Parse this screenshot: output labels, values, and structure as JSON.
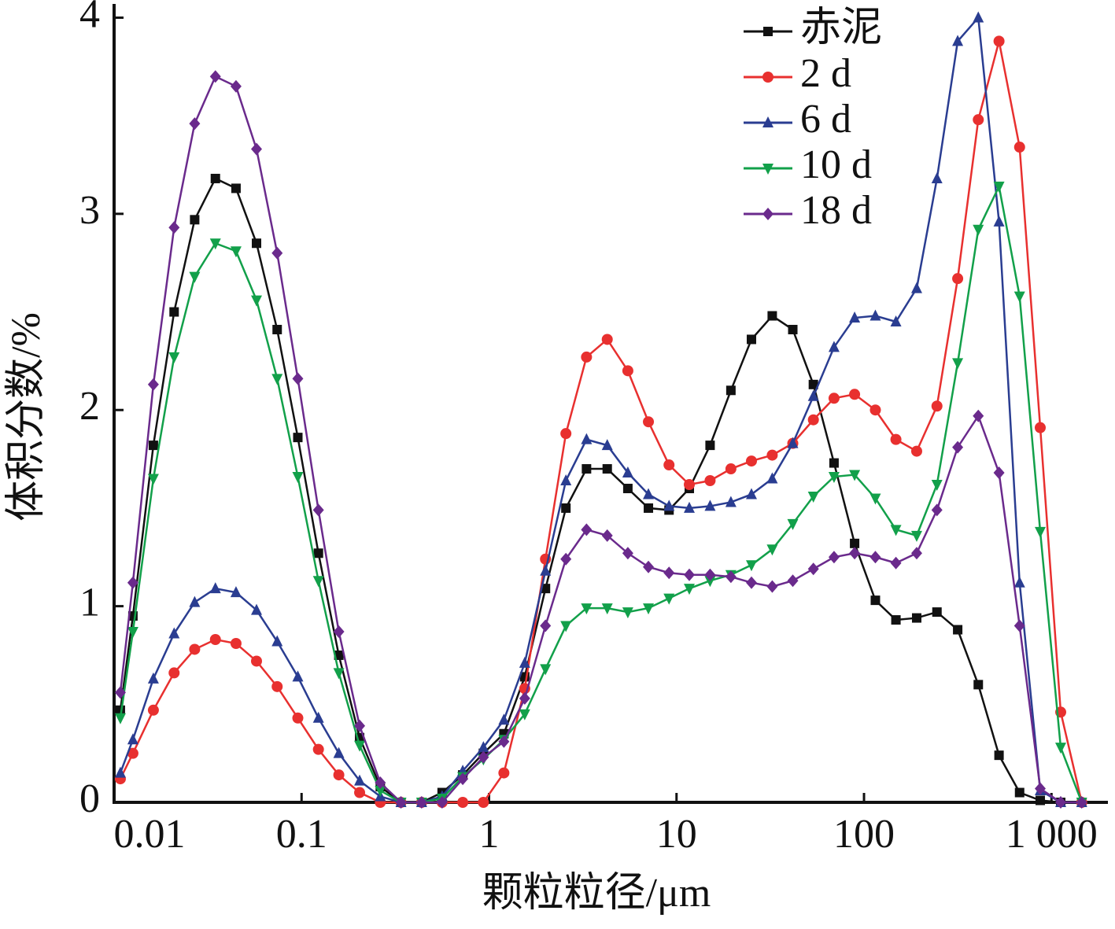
{
  "chart_data": {
    "type": "line",
    "x_label": "颗粒粒径/μm",
    "y_label": "体积分数/%",
    "log_x": true,
    "xlim": [
      0.01,
      2000
    ],
    "xticks": [
      0.01,
      0.1,
      1,
      10,
      100,
      {
        "value": 1000,
        "label": "1 000"
      }
    ],
    "ylim": [
      0,
      4.07
    ],
    "yticks": [
      0,
      1,
      2,
      3,
      4
    ],
    "legend": "upper right",
    "x": [
      0.0108,
      0.0126,
      0.0162,
      0.0209,
      0.0269,
      0.0347,
      0.0447,
      0.0575,
      0.0741,
      0.0955,
      0.123,
      0.158,
      0.204,
      0.263,
      0.339,
      0.437,
      0.562,
      0.724,
      0.933,
      1.2,
      1.55,
      2,
      2.57,
      3.31,
      4.27,
      5.5,
      7.08,
      9.12,
      11.7,
      15.1,
      19.5,
      25.1,
      32.4,
      41.7,
      53.7,
      69.2,
      89.1,
      115,
      148,
      191,
      245,
      316,
      407,
      525,
      676,
      871,
      1120,
      1450
    ],
    "series": [
      {
        "name": "赤泥",
        "color": "#111111",
        "marker": "square",
        "values": [
          0.47,
          0.95,
          1.82,
          2.5,
          2.97,
          3.18,
          3.13,
          2.85,
          2.41,
          1.86,
          1.27,
          0.75,
          0.33,
          0.08,
          0,
          0,
          0.05,
          0.14,
          0.25,
          0.35,
          0.64,
          1.09,
          1.5,
          1.7,
          1.7,
          1.6,
          1.5,
          1.49,
          1.6,
          1.82,
          2.1,
          2.36,
          2.48,
          2.41,
          2.13,
          1.73,
          1.32,
          1.03,
          0.93,
          0.94,
          0.97,
          0.88,
          0.6,
          0.24,
          0.05,
          0.01,
          0,
          0
        ]
      },
      {
        "name": "2 d",
        "color": "#e8302f",
        "marker": "circle",
        "values": [
          0.12,
          0.25,
          0.47,
          0.66,
          0.78,
          0.83,
          0.81,
          0.72,
          0.59,
          0.43,
          0.27,
          0.14,
          0.05,
          0,
          0,
          0,
          0,
          0,
          0,
          0.15,
          0.58,
          1.24,
          1.88,
          2.27,
          2.36,
          2.2,
          1.94,
          1.72,
          1.62,
          1.64,
          1.7,
          1.74,
          1.77,
          1.83,
          1.95,
          2.06,
          2.08,
          2.0,
          1.85,
          1.79,
          2.02,
          2.67,
          3.48,
          3.88,
          3.34,
          1.91,
          0.46,
          0
        ]
      },
      {
        "name": "6 d",
        "color": "#2a3d91",
        "marker": "triangle-up",
        "values": [
          0.15,
          0.32,
          0.63,
          0.86,
          1.02,
          1.09,
          1.07,
          0.98,
          0.82,
          0.64,
          0.43,
          0.25,
          0.11,
          0.03,
          0,
          0,
          0.03,
          0.16,
          0.28,
          0.42,
          0.71,
          1.18,
          1.64,
          1.85,
          1.82,
          1.68,
          1.57,
          1.51,
          1.5,
          1.51,
          1.53,
          1.57,
          1.65,
          1.83,
          2.07,
          2.32,
          2.47,
          2.48,
          2.45,
          2.62,
          3.18,
          3.88,
          4.0,
          2.96,
          1.12,
          0.06,
          0,
          0
        ]
      },
      {
        "name": "10 d",
        "color": "#12a04a",
        "marker": "triangle-down",
        "values": [
          0.43,
          0.87,
          1.65,
          2.27,
          2.68,
          2.85,
          2.81,
          2.56,
          2.16,
          1.66,
          1.13,
          0.66,
          0.29,
          0.06,
          0,
          0,
          0.02,
          0.13,
          0.22,
          0.32,
          0.45,
          0.68,
          0.9,
          0.99,
          0.99,
          0.97,
          0.99,
          1.04,
          1.09,
          1.13,
          1.16,
          1.21,
          1.29,
          1.42,
          1.56,
          1.66,
          1.67,
          1.55,
          1.39,
          1.36,
          1.62,
          2.24,
          2.92,
          3.14,
          2.58,
          1.38,
          0.28,
          0
        ]
      },
      {
        "name": "18 d",
        "color": "#6a2a8c",
        "marker": "diamond",
        "values": [
          0.56,
          1.12,
          2.13,
          2.93,
          3.46,
          3.7,
          3.65,
          3.33,
          2.8,
          2.16,
          1.49,
          0.87,
          0.39,
          0.1,
          0,
          0,
          0,
          0.12,
          0.23,
          0.31,
          0.53,
          0.9,
          1.24,
          1.39,
          1.36,
          1.27,
          1.2,
          1.17,
          1.16,
          1.16,
          1.15,
          1.12,
          1.1,
          1.13,
          1.19,
          1.25,
          1.27,
          1.25,
          1.22,
          1.27,
          1.49,
          1.81,
          1.97,
          1.68,
          0.9,
          0.07,
          0,
          0
        ]
      }
    ]
  }
}
